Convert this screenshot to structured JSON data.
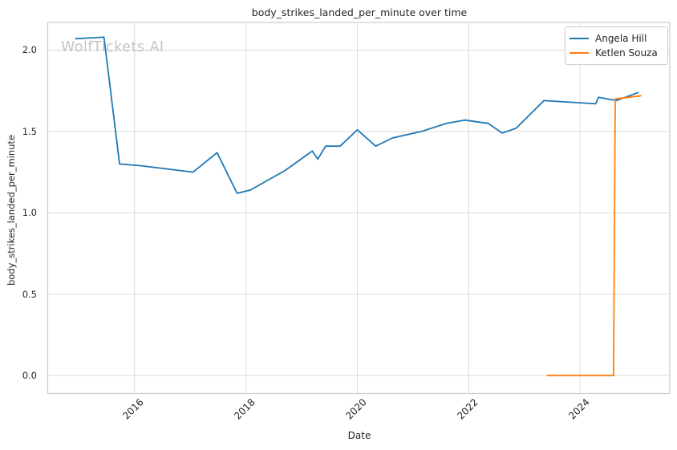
{
  "watermark": "WolfTickets.AI",
  "colors": {
    "background": "#ffffff",
    "grid": "#dcdcdc",
    "spine": "#cccccc",
    "text": "#262626",
    "watermark": "#c5c5c5",
    "angela_hill": "#1f77b4",
    "ketlen_souza": "#ff7f0e"
  },
  "chart_data": {
    "type": "line",
    "title": "body_strikes_landed_per_minute over time",
    "xlabel": "Date",
    "ylabel": "body_strikes_landed_per_minute",
    "grid": true,
    "legend_position": "upper right",
    "xlim": [
      2014.44,
      2025.61
    ],
    "ylim": [
      -0.11,
      2.17
    ],
    "x_ticks": {
      "values": [
        2016,
        2018,
        2020,
        2022,
        2024
      ],
      "labels": [
        "2016",
        "2018",
        "2020",
        "2022",
        "2024"
      ]
    },
    "y_ticks": {
      "values": [
        0.0,
        0.5,
        1.0,
        1.5,
        2.0
      ],
      "labels": [
        "0.0",
        "0.5",
        "1.0",
        "1.5",
        "2.0"
      ]
    },
    "series": [
      {
        "name": "Angela Hill",
        "color": "#1f77b4",
        "x": [
          2014.93,
          2015.45,
          2015.73,
          2016.1,
          2017.05,
          2017.48,
          2017.84,
          2018.08,
          2018.7,
          2019.19,
          2019.29,
          2019.43,
          2019.69,
          2020.0,
          2020.33,
          2020.63,
          2021.15,
          2021.6,
          2021.93,
          2022.35,
          2022.6,
          2022.85,
          2023.35,
          2024.28,
          2024.33,
          2024.65,
          2025.05
        ],
        "y": [
          2.07,
          2.08,
          1.3,
          1.29,
          1.25,
          1.37,
          1.12,
          1.14,
          1.26,
          1.38,
          1.33,
          1.41,
          1.41,
          1.51,
          1.41,
          1.46,
          1.5,
          1.55,
          1.57,
          1.55,
          1.49,
          1.52,
          1.69,
          1.67,
          1.71,
          1.69,
          1.74
        ]
      },
      {
        "name": "Ketlen Souza",
        "color": "#ff7f0e",
        "x": [
          2023.4,
          2024.6,
          2024.63,
          2025.1
        ],
        "y": [
          0.0,
          0.0,
          1.7,
          1.72
        ]
      }
    ]
  }
}
